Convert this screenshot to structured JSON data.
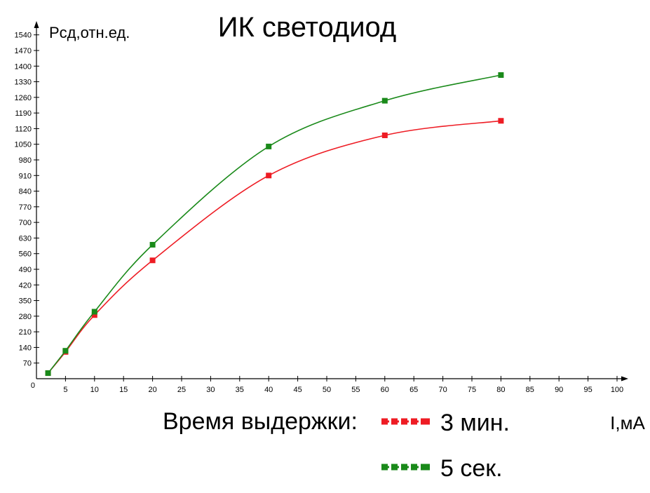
{
  "chart_data": {
    "type": "line",
    "title": "ИК светодиод",
    "ylabel": "Pсд,отн.ед.",
    "xlabel": "I,мА",
    "x_origin_label": "0",
    "x_ticks": [
      5,
      10,
      15,
      20,
      25,
      30,
      35,
      40,
      45,
      50,
      55,
      60,
      65,
      70,
      75,
      80,
      85,
      90,
      95,
      100
    ],
    "y_ticks": [
      70,
      140,
      210,
      280,
      350,
      420,
      490,
      560,
      630,
      700,
      770,
      840,
      910,
      980,
      1050,
      1120,
      1190,
      1260,
      1330,
      1400,
      1470,
      1540
    ],
    "xlim": [
      0,
      100
    ],
    "ylim": [
      0,
      1560
    ],
    "grid": false,
    "legend_title": "Время выдержки:",
    "series": [
      {
        "name": "3 мин.",
        "color": "#ee1c24",
        "x": [
          2,
          5,
          10,
          20,
          40,
          60,
          80
        ],
        "y": [
          25,
          120,
          285,
          530,
          910,
          1090,
          1155
        ]
      },
      {
        "name": "5 сек.",
        "color": "#1a8a1a",
        "x": [
          2,
          5,
          10,
          20,
          40,
          60,
          80
        ],
        "y": [
          25,
          125,
          300,
          600,
          1040,
          1245,
          1360
        ]
      }
    ]
  }
}
